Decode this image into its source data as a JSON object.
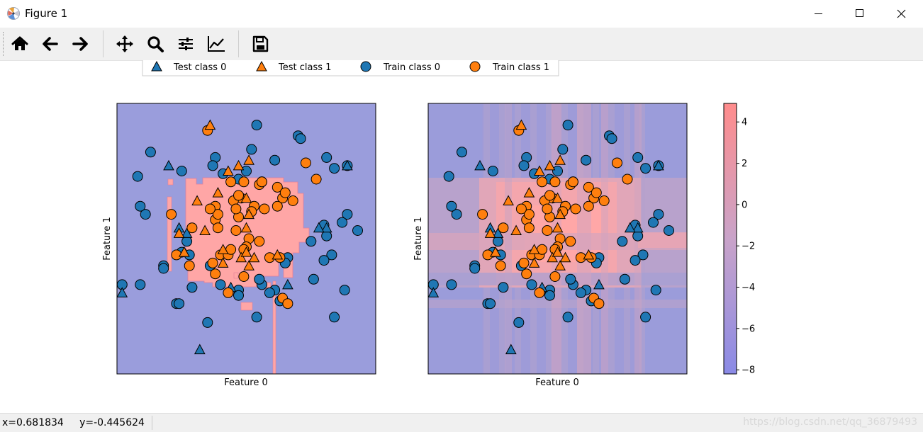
{
  "window": {
    "title": "Figure 1",
    "controls": {
      "minimize": "minimize",
      "maximize": "maximize",
      "close": "close"
    }
  },
  "toolbar": {
    "items": [
      {
        "name": "home",
        "icon": "home-icon"
      },
      {
        "name": "back",
        "icon": "arrow-left-icon"
      },
      {
        "name": "forward",
        "icon": "arrow-right-icon"
      },
      {
        "name": "pan",
        "icon": "move-icon"
      },
      {
        "name": "zoom",
        "icon": "magnifier-icon"
      },
      {
        "name": "subplots",
        "icon": "sliders-icon"
      },
      {
        "name": "customize",
        "icon": "line-chart-icon"
      },
      {
        "name": "save",
        "icon": "floppy-icon"
      }
    ]
  },
  "figure": {
    "legend": [
      "Test class 0",
      "Test class 1",
      "Train class 0",
      "Train class 1"
    ],
    "colors": {
      "class0": "#1f77b4",
      "class1": "#ff7f0e",
      "region0": "#9a9ddc",
      "region1": "#ffa6a6"
    },
    "colorbar": {
      "ticks": [
        "4",
        "2",
        "0",
        "−2",
        "−4",
        "−6",
        "−8"
      ],
      "tick_values": [
        4,
        2,
        0,
        -2,
        -4,
        -6,
        -8
      ],
      "range": [
        -8.2,
        4.9
      ]
    }
  },
  "chart_data": [
    {
      "type": "scatter",
      "xlabel": "Feature 0",
      "ylabel": "Feature 1",
      "background": "decision-regions",
      "xlim": [
        0,
        100
      ],
      "ylim": [
        0,
        100
      ],
      "series": [
        {
          "name": "Train class 0",
          "marker": "circle",
          "color": "#1f77b4",
          "points": [
            [
              54,
              92
            ],
            [
              70,
              88
            ],
            [
              71,
              87
            ],
            [
              52,
              83
            ],
            [
              13,
              82
            ],
            [
              38,
              80
            ],
            [
              61,
              79
            ],
            [
              81,
              80
            ],
            [
              89,
              77
            ],
            [
              37,
              77
            ],
            [
              50,
              75
            ],
            [
              84,
              76
            ],
            [
              25,
              75
            ],
            [
              41,
              74
            ],
            [
              47,
              72
            ],
            [
              8,
              73
            ],
            [
              11,
              59
            ],
            [
              9,
              62
            ],
            [
              89,
              59
            ],
            [
              93,
              53
            ],
            [
              80,
              55
            ],
            [
              87,
              56
            ],
            [
              27,
              49
            ],
            [
              25,
              45
            ],
            [
              75,
              49
            ],
            [
              66,
              43
            ],
            [
              83,
              44
            ],
            [
              28,
              44
            ],
            [
              80,
              42
            ],
            [
              81,
              51
            ],
            [
              65,
              41
            ],
            [
              36,
              40
            ],
            [
              18,
              40
            ],
            [
              18,
              39
            ],
            [
              2,
              33
            ],
            [
              40,
              33
            ],
            [
              56,
              33
            ],
            [
              29,
              32
            ],
            [
              47,
              31
            ],
            [
              9,
              33
            ],
            [
              61,
              31
            ],
            [
              88,
              31
            ],
            [
              59,
              30
            ],
            [
              63,
              27
            ],
            [
              47,
              29
            ],
            [
              23,
              26
            ],
            [
              24,
              26
            ],
            [
              54,
              21
            ],
            [
              84,
              21
            ],
            [
              55,
              35
            ],
            [
              76,
              35
            ],
            [
              35,
              19
            ]
          ]
        },
        {
          "name": "Test class 0",
          "marker": "triangle",
          "color": "#1f77b4",
          "points": [
            [
              20,
              77
            ],
            [
              89,
              77
            ],
            [
              81,
              54
            ],
            [
              78,
              54
            ],
            [
              27,
              52
            ],
            [
              24,
              54
            ],
            [
              2,
              30
            ],
            [
              44,
              32
            ],
            [
              66,
              33
            ],
            [
              32,
              9
            ]
          ]
        },
        {
          "name": "Train class 1",
          "marker": "circle",
          "color": "#ff7f0e",
          "points": [
            [
              35,
              90
            ],
            [
              73,
              78
            ],
            [
              56,
              71
            ],
            [
              77,
              72
            ],
            [
              44,
              71
            ],
            [
              62,
              69
            ],
            [
              49,
              71
            ],
            [
              55,
              70
            ],
            [
              56,
              71
            ],
            [
              48,
              65
            ],
            [
              64,
              65
            ],
            [
              65,
              67
            ],
            [
              57,
              61
            ],
            [
              62,
              62
            ],
            [
              68,
              64
            ],
            [
              53,
              62
            ],
            [
              45,
              64
            ],
            [
              47,
              66
            ],
            [
              47,
              58
            ],
            [
              46,
              61
            ],
            [
              52,
              60
            ],
            [
              38,
              62
            ],
            [
              38,
              57
            ],
            [
              39,
              59
            ],
            [
              36,
              61
            ],
            [
              21,
              59
            ],
            [
              29,
              54
            ],
            [
              39,
              54
            ],
            [
              46,
              53
            ],
            [
              51,
              50
            ],
            [
              50,
              47
            ],
            [
              23,
              44
            ],
            [
              40,
              44
            ],
            [
              55,
              49
            ],
            [
              49,
              46
            ],
            [
              59,
              43
            ],
            [
              63,
              43
            ],
            [
              43,
              44
            ],
            [
              44,
              46
            ],
            [
              37,
              41
            ],
            [
              28,
              40
            ],
            [
              38,
              37
            ],
            [
              49,
              36
            ],
            [
              64,
              28
            ],
            [
              43,
              30
            ],
            [
              66,
              26
            ]
          ]
        },
        {
          "name": "Test class 1",
          "marker": "triangle",
          "color": "#ff7f0e",
          "points": [
            [
              36,
              92
            ],
            [
              51,
              79
            ],
            [
              47,
              77
            ],
            [
              43,
              75
            ],
            [
              50,
              65
            ],
            [
              39,
              67
            ],
            [
              31,
              64
            ],
            [
              51,
              59
            ],
            [
              50,
              54
            ],
            [
              34,
              53
            ],
            [
              24,
              52
            ],
            [
              26,
              45
            ],
            [
              41,
              41
            ],
            [
              62,
              44
            ],
            [
              51,
              40
            ],
            [
              53,
              43
            ],
            [
              48,
              43
            ],
            [
              41,
              46
            ],
            [
              50,
              45
            ]
          ]
        }
      ]
    }
  ]
}
